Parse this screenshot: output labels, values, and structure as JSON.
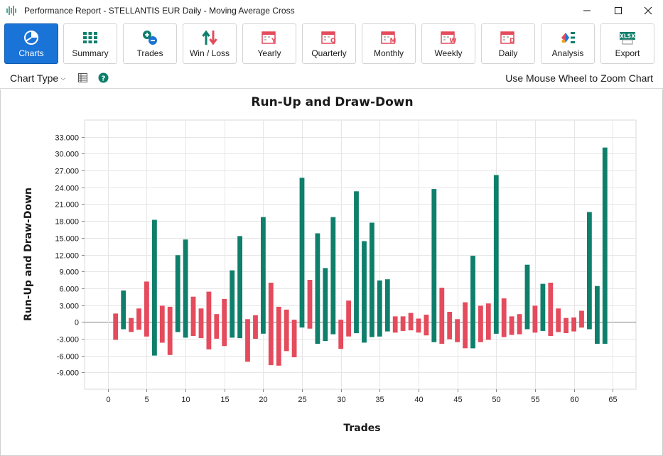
{
  "window": {
    "title": "Performance Report - STELLANTIS EUR Daily - Moving Average Cross",
    "controls": [
      "minimize-icon",
      "maximize-icon",
      "close-icon"
    ]
  },
  "toolbar": {
    "items": [
      {
        "label": "Charts",
        "icon": "pie-chart-icon",
        "active": true
      },
      {
        "label": "Summary",
        "icon": "grid-icon"
      },
      {
        "label": "Trades",
        "icon": "plus-minus-icon"
      },
      {
        "label": "Win / Loss",
        "icon": "up-down-arrows-icon"
      },
      {
        "label": "Yearly",
        "icon": "calendar-y-icon",
        "badge": "Y"
      },
      {
        "label": "Quarterly",
        "icon": "calendar-q-icon",
        "badge": "Q"
      },
      {
        "label": "Monthly",
        "icon": "calendar-m-icon",
        "badge": "M"
      },
      {
        "label": "Weekly",
        "icon": "calendar-w-icon",
        "badge": "W"
      },
      {
        "label": "Daily",
        "icon": "calendar-d-icon",
        "badge": "D"
      },
      {
        "label": "Analysis",
        "icon": "analysis-icon"
      },
      {
        "label": "Export",
        "icon": "xlsx-icon",
        "badge": "XLSX"
      }
    ]
  },
  "subbar": {
    "chart_type_label": "Chart Type",
    "zoom_hint": "Use Mouse Wheel to Zoom Chart"
  },
  "colors": {
    "run_up": "#0e7f6b",
    "draw_down": "#e44b5c",
    "active_button": "#1a73d6",
    "gridline": "#e6e6e6",
    "zero_line": "#808080"
  },
  "chart_data": {
    "type": "bar",
    "title": "Run-Up and Draw-Down",
    "xlabel": "Trades",
    "ylabel": "Run-Up and Draw-Down",
    "xlim": [
      -3,
      68
    ],
    "ylim": [
      -12000,
      36000
    ],
    "xticks": [
      0,
      5,
      10,
      15,
      20,
      25,
      30,
      35,
      40,
      45,
      50,
      55,
      60,
      65
    ],
    "yticks": [
      -9000,
      -6000,
      -3000,
      0,
      3000,
      6000,
      9000,
      12000,
      15000,
      18000,
      21000,
      24000,
      27000,
      30000,
      33000
    ],
    "ytick_labels": [
      "-9.000",
      "-6.000",
      "-3.000",
      "0",
      "3.000",
      "6.000",
      "9.000",
      "12.000",
      "15.000",
      "18.000",
      "21.000",
      "24.000",
      "27.000",
      "30.000",
      "33.000"
    ],
    "grid": true,
    "series": [
      {
        "color": "#0e7f6b",
        "points": [
          {
            "x": 2,
            "high": 5600,
            "low": -1300
          },
          {
            "x": 6,
            "high": 18200,
            "low": -6000
          },
          {
            "x": 9,
            "high": 11900,
            "low": -1800
          },
          {
            "x": 10,
            "high": 14700,
            "low": -2800
          },
          {
            "x": 16,
            "high": 9200,
            "low": -2800
          },
          {
            "x": 17,
            "high": 15300,
            "low": -2900
          },
          {
            "x": 20,
            "high": 18700,
            "low": -2100
          },
          {
            "x": 25,
            "high": 25700,
            "low": -1000
          },
          {
            "x": 27,
            "high": 15800,
            "low": -3900
          },
          {
            "x": 28,
            "high": 9600,
            "low": -3400
          },
          {
            "x": 29,
            "high": 18700,
            "low": -2200
          },
          {
            "x": 32,
            "high": 23300,
            "low": -2000
          },
          {
            "x": 33,
            "high": 14400,
            "low": -3700
          },
          {
            "x": 34,
            "high": 17700,
            "low": -2700
          },
          {
            "x": 35,
            "high": 7400,
            "low": -2600
          },
          {
            "x": 36,
            "high": 7600,
            "low": -1700
          },
          {
            "x": 42,
            "high": 23700,
            "low": -3600
          },
          {
            "x": 47,
            "high": 11800,
            "low": -4700
          },
          {
            "x": 50,
            "high": 26200,
            "low": -2100
          },
          {
            "x": 54,
            "high": 10200,
            "low": -1300
          },
          {
            "x": 56,
            "high": 6800,
            "low": -1600
          },
          {
            "x": 62,
            "high": 19600,
            "low": -1300
          },
          {
            "x": 63,
            "high": 6400,
            "low": -3900
          },
          {
            "x": 64,
            "high": 31100,
            "low": -3900
          }
        ]
      },
      {
        "color": "#e44b5c",
        "points": [
          {
            "x": 1,
            "high": 1500,
            "low": -3200
          },
          {
            "x": 3,
            "high": 700,
            "low": -1800
          },
          {
            "x": 4,
            "high": 2400,
            "low": -1400
          },
          {
            "x": 5,
            "high": 7200,
            "low": -2600
          },
          {
            "x": 7,
            "high": 2900,
            "low": -3700
          },
          {
            "x": 8,
            "high": 2700,
            "low": -5900
          },
          {
            "x": 11,
            "high": 4500,
            "low": -2500
          },
          {
            "x": 12,
            "high": 2400,
            "low": -2900
          },
          {
            "x": 13,
            "high": 5400,
            "low": -4900
          },
          {
            "x": 14,
            "high": 1400,
            "low": -3000
          },
          {
            "x": 15,
            "high": 4100,
            "low": -4300
          },
          {
            "x": 18,
            "high": 500,
            "low": -7100
          },
          {
            "x": 19,
            "high": 1200,
            "low": -3000
          },
          {
            "x": 21,
            "high": 7000,
            "low": -7700
          },
          {
            "x": 22,
            "high": 2700,
            "low": -7800
          },
          {
            "x": 23,
            "high": 2200,
            "low": -5200
          },
          {
            "x": 24,
            "high": 400,
            "low": -6300
          },
          {
            "x": 26,
            "high": 7500,
            "low": -1200
          },
          {
            "x": 30,
            "high": 400,
            "low": -4800
          },
          {
            "x": 31,
            "high": 3800,
            "low": -2600
          },
          {
            "x": 37,
            "high": 1000,
            "low": -1900
          },
          {
            "x": 38,
            "high": 1000,
            "low": -1600
          },
          {
            "x": 39,
            "high": 1600,
            "low": -1500
          },
          {
            "x": 40,
            "high": 600,
            "low": -1900
          },
          {
            "x": 41,
            "high": 1300,
            "low": -2400
          },
          {
            "x": 43,
            "high": 6100,
            "low": -3900
          },
          {
            "x": 44,
            "high": 1800,
            "low": -3100
          },
          {
            "x": 45,
            "high": 500,
            "low": -3600
          },
          {
            "x": 46,
            "high": 3500,
            "low": -4700
          },
          {
            "x": 48,
            "high": 2900,
            "low": -3600
          },
          {
            "x": 49,
            "high": 3300,
            "low": -3200
          },
          {
            "x": 51,
            "high": 4200,
            "low": -2700
          },
          {
            "x": 52,
            "high": 1000,
            "low": -2300
          },
          {
            "x": 53,
            "high": 1400,
            "low": -2200
          },
          {
            "x": 55,
            "high": 2900,
            "low": -1900
          },
          {
            "x": 57,
            "high": 7000,
            "low": -2500
          },
          {
            "x": 58,
            "high": 2400,
            "low": -1800
          },
          {
            "x": 59,
            "high": 700,
            "low": -2000
          },
          {
            "x": 60,
            "high": 800,
            "low": -1700
          },
          {
            "x": 61,
            "high": 2000,
            "low": -1000
          }
        ]
      }
    ]
  }
}
